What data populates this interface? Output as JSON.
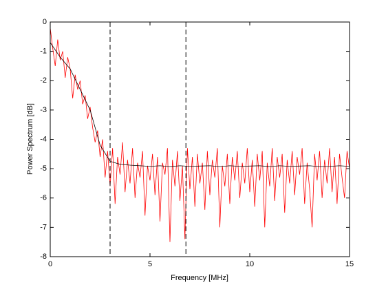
{
  "chart_data": {
    "type": "line",
    "xlabel": "Frequency [MHz]",
    "ylabel": "Power Spectrum [dB]",
    "xlim": [
      0,
      15
    ],
    "xticks": [
      0,
      5,
      10,
      15
    ],
    "ylim": [
      -8,
      0
    ],
    "yticks": [
      -8,
      -7,
      -6,
      -5,
      -4,
      -3,
      -2,
      -1,
      0
    ],
    "vlines": [
      3,
      6.8
    ],
    "vline_color": "#000000",
    "series": [
      {
        "color": "#ff0000",
        "x": [
          0,
          0.125,
          0.25,
          0.375,
          0.5,
          0.625,
          0.75,
          0.875,
          1,
          1.125,
          1.25,
          1.375,
          1.5,
          1.625,
          1.75,
          1.875,
          2,
          2.125,
          2.25,
          2.375,
          2.5,
          2.625,
          2.75,
          2.875,
          3,
          3.125,
          3.25,
          3.375,
          3.5,
          3.625,
          3.75,
          3.875,
          4,
          4.125,
          4.25,
          4.375,
          4.5,
          4.625,
          4.75,
          4.875,
          5,
          5.125,
          5.25,
          5.375,
          5.5,
          5.625,
          5.75,
          5.875,
          6,
          6.125,
          6.25,
          6.375,
          6.5,
          6.625,
          6.75,
          6.875,
          7,
          7.125,
          7.25,
          7.375,
          7.5,
          7.625,
          7.75,
          7.875,
          8,
          8.125,
          8.25,
          8.375,
          8.5,
          8.625,
          8.75,
          8.875,
          9,
          9.125,
          9.25,
          9.375,
          9.5,
          9.625,
          9.75,
          9.875,
          10,
          10.125,
          10.25,
          10.375,
          10.5,
          10.625,
          10.75,
          10.875,
          11,
          11.125,
          11.25,
          11.375,
          11.5,
          11.625,
          11.75,
          11.875,
          12,
          12.125,
          12.25,
          12.375,
          12.5,
          12.625,
          12.75,
          12.875,
          13,
          13.125,
          13.25,
          13.375,
          13.5,
          13.625,
          13.75,
          13.875,
          14,
          14.125,
          14.25,
          14.375,
          14.5,
          14.625,
          14.75,
          14.875,
          15
        ],
        "values": [
          -0.2,
          -0.9,
          -1.5,
          -0.6,
          -1.3,
          -1.0,
          -1.9,
          -1.2,
          -1.6,
          -2.6,
          -1.8,
          -2.3,
          -2.0,
          -2.8,
          -2.5,
          -3.3,
          -2.9,
          -3.6,
          -4.1,
          -3.7,
          -4.6,
          -4.0,
          -5.3,
          -4.4,
          -5.6,
          -4.3,
          -6.2,
          -4.6,
          -5.2,
          -4.1,
          -5.8,
          -4.7,
          -5.5,
          -4.3,
          -6.0,
          -4.8,
          -5.3,
          -4.4,
          -6.6,
          -4.9,
          -5.4,
          -4.5,
          -5.9,
          -4.6,
          -6.8,
          -4.8,
          -5.2,
          -4.3,
          -7.5,
          -4.7,
          -5.6,
          -4.4,
          -6.1,
          -4.9,
          -7.4,
          -4.3,
          -5.7,
          -4.6,
          -6.3,
          -4.5,
          -5.5,
          -4.8,
          -6.4,
          -4.4,
          -5.9,
          -4.7,
          -5.3,
          -4.3,
          -7.0,
          -4.9,
          -5.6,
          -4.5,
          -6.2,
          -4.6,
          -5.4,
          -4.4,
          -6.0,
          -4.8,
          -5.5,
          -4.3,
          -5.8,
          -4.7,
          -6.3,
          -4.5,
          -5.4,
          -4.4,
          -7.0,
          -4.8,
          -5.6,
          -4.3,
          -6.1,
          -4.6,
          -5.3,
          -4.5,
          -6.5,
          -4.7,
          -5.5,
          -4.4,
          -5.9,
          -4.6,
          -5.2,
          -4.3,
          -6.2,
          -4.8,
          -5.7,
          -7.0,
          -4.5,
          -5.4,
          -4.4,
          -6.0,
          -4.7,
          -5.5,
          -4.3,
          -5.8,
          -4.6,
          -6.2,
          -4.5,
          -5.3,
          -6.0,
          -4.4,
          -5.0
        ]
      },
      {
        "color": "#000000",
        "x": [
          0,
          0.5,
          1,
          1.5,
          2,
          2.5,
          3,
          3.5,
          4,
          4.5,
          5,
          5.5,
          6,
          6.5,
          7,
          7.5,
          8,
          8.5,
          9,
          9.5,
          10,
          10.5,
          11,
          11.5,
          12,
          12.5,
          13,
          13.5,
          14,
          14.5,
          15
        ],
        "values": [
          -0.7,
          -1.2,
          -1.6,
          -2.3,
          -3.0,
          -4.2,
          -4.75,
          -4.85,
          -4.88,
          -4.9,
          -4.92,
          -4.9,
          -4.93,
          -4.9,
          -4.92,
          -4.91,
          -4.9,
          -4.93,
          -4.9,
          -4.92,
          -4.91,
          -4.9,
          -4.93,
          -4.9,
          -4.92,
          -4.91,
          -4.9,
          -4.93,
          -4.92,
          -4.9,
          -4.92
        ]
      }
    ]
  }
}
